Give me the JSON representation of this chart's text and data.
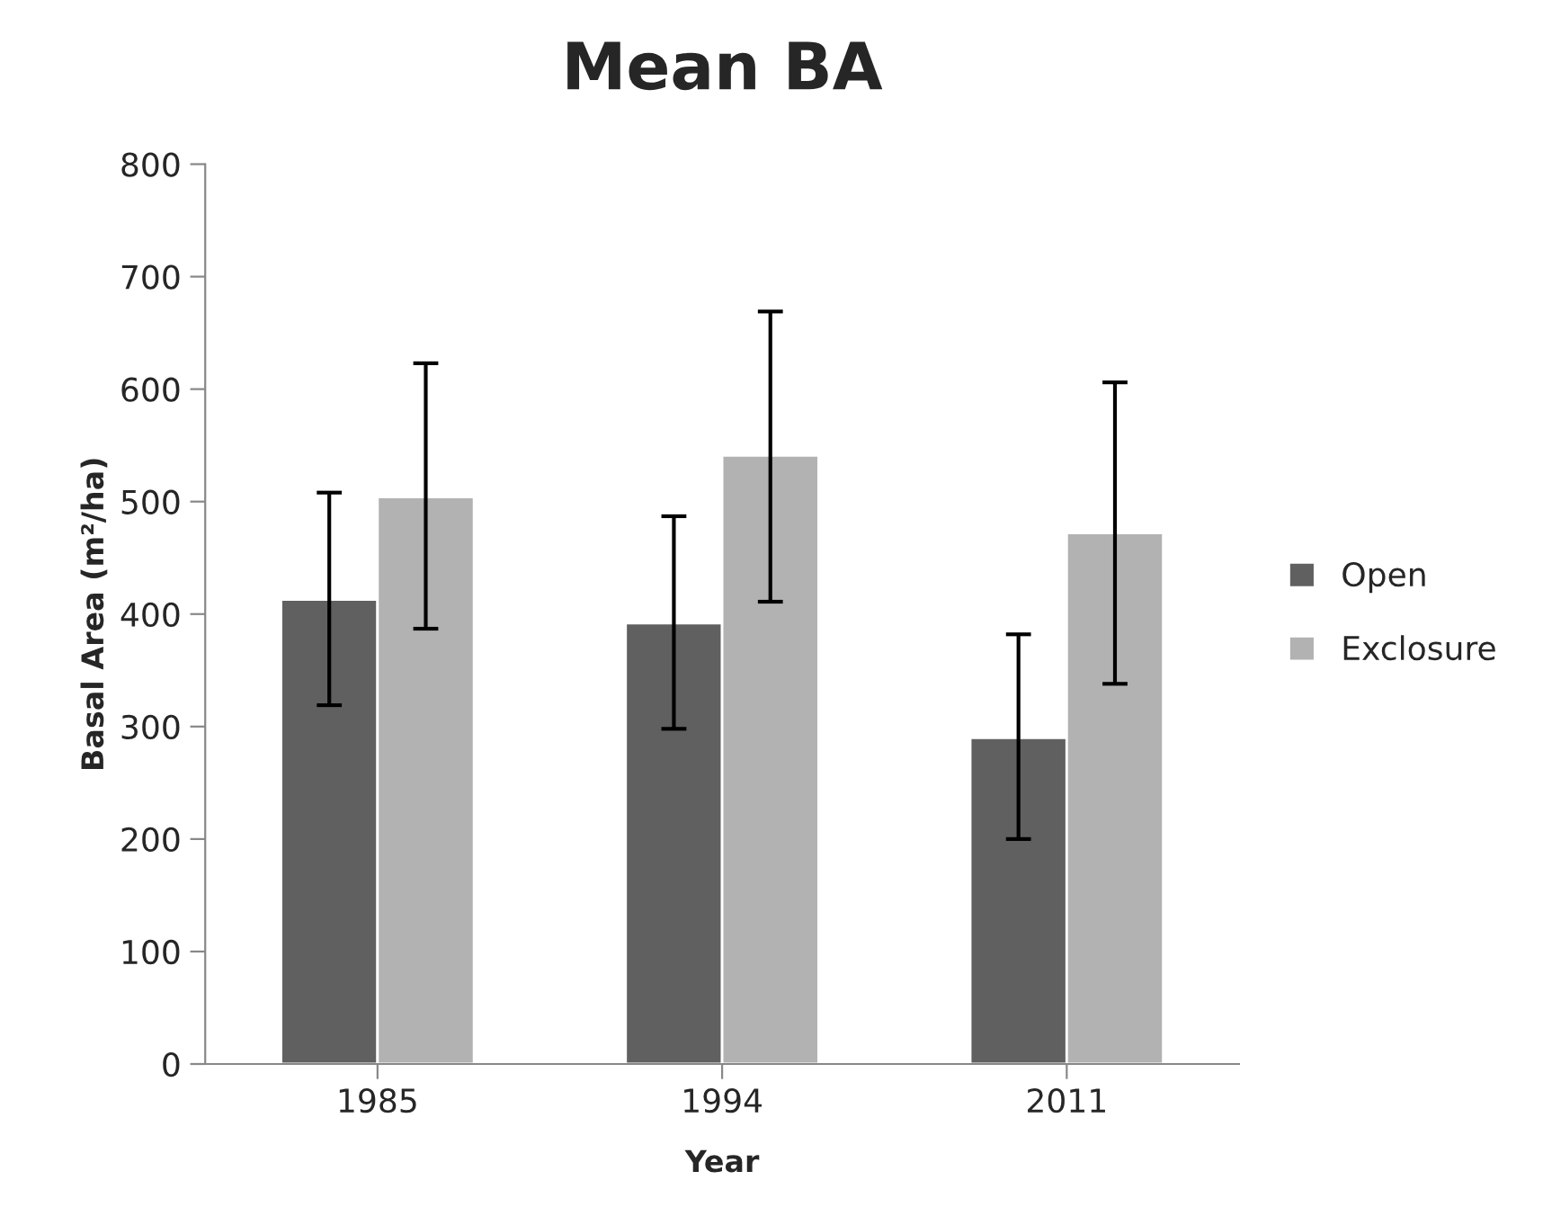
{
  "chart_data": {
    "type": "bar",
    "title": "Mean BA",
    "xlabel": "Year",
    "ylabel": "Basal Area (m²/ha)",
    "categories": [
      "1985",
      "1994",
      "2011"
    ],
    "series": [
      {
        "name": "Open",
        "color": "#606060",
        "values": [
          413,
          392,
          290
        ],
        "errors": [
          [
            319,
            508
          ],
          [
            298,
            487
          ],
          [
            200,
            382
          ]
        ]
      },
      {
        "name": "Exclosure",
        "color": "#b2b2b2",
        "values": [
          504,
          541,
          472
        ],
        "errors": [
          [
            387,
            623
          ],
          [
            411,
            669
          ],
          [
            338,
            606
          ]
        ]
      }
    ],
    "ylim": [
      0,
      800
    ],
    "yticks": [
      0,
      100,
      200,
      300,
      400,
      500,
      600,
      700,
      800
    ],
    "grid": false,
    "legend": "right"
  }
}
